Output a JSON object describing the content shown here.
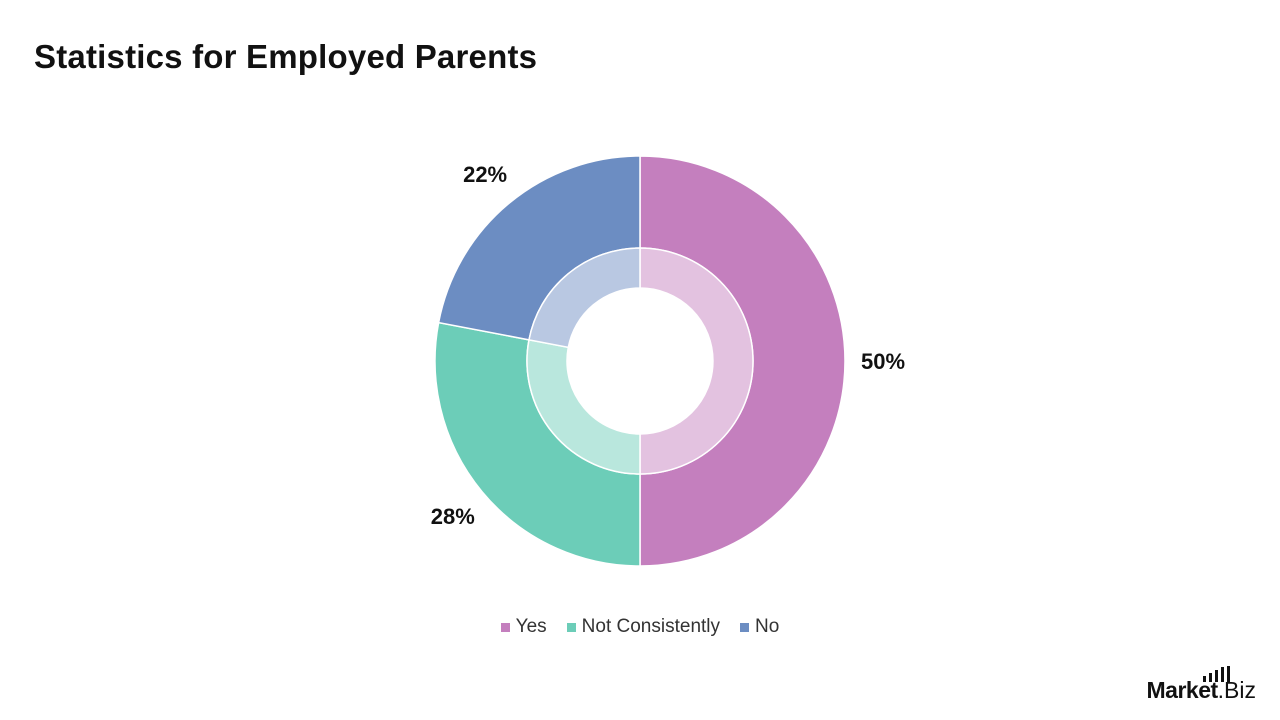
{
  "title": "Statistics for Employed Parents",
  "brand": {
    "name": "Market",
    "suffix": ".Biz"
  },
  "colors": {
    "Yes": "#c47fbe",
    "Not Consistently": "#6ccdb8",
    "No": "#6c8dc2"
  },
  "chart_data": {
    "type": "pie",
    "style": "donut",
    "title": "Statistics for Employed Parents",
    "categories": [
      "Yes",
      "Not Consistently",
      "No"
    ],
    "values": [
      50,
      28,
      22
    ],
    "labels": [
      "50%",
      "28%",
      "22%"
    ],
    "legend": "bottom-center",
    "grid": false
  }
}
